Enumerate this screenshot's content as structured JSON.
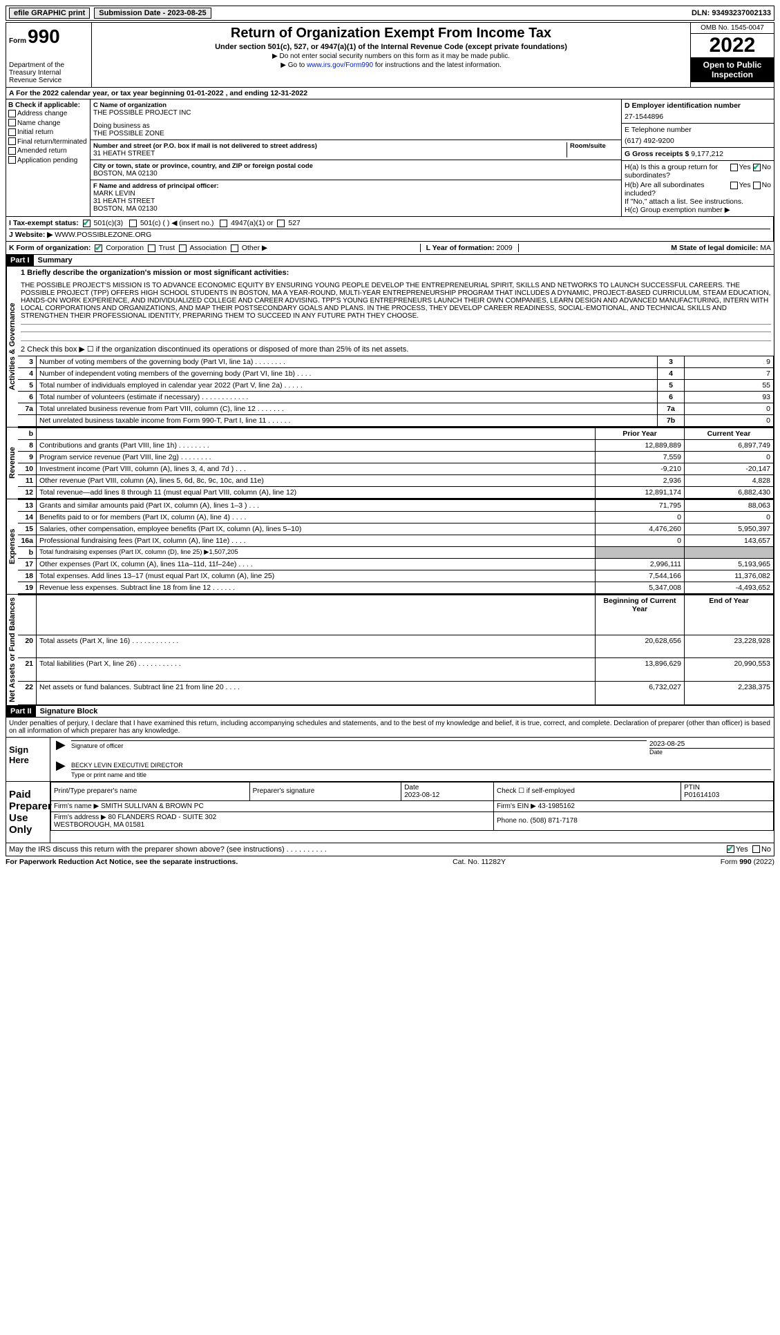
{
  "top": {
    "efile": "efile GRAPHIC print",
    "sub_date_label": "Submission Date - ",
    "sub_date": "2023-08-25",
    "dln_label": "DLN: ",
    "dln": "93493237002133"
  },
  "header": {
    "form_word": "Form",
    "form_no": "990",
    "dept": "Department of the Treasury Internal Revenue Service",
    "title": "Return of Organization Exempt From Income Tax",
    "subtitle": "Under section 501(c), 527, or 4947(a)(1) of the Internal Revenue Code (except private foundations)",
    "arrow1": "▶ Do not enter social security numbers on this form as it may be made public.",
    "arrow2_pre": "▶ Go to ",
    "arrow2_link": "www.irs.gov/Form990",
    "arrow2_post": " for instructions and the latest information.",
    "omb": "OMB No. 1545-0047",
    "year": "2022",
    "inspection": "Open to Public Inspection"
  },
  "rowA": "A For the 2022 calendar year, or tax year beginning 01-01-2022   , and ending 12-31-2022",
  "colB": {
    "hdr": "B Check if applicable:",
    "items": [
      "Address change",
      "Name change",
      "Initial return",
      "Final return/terminated",
      "Amended return",
      "Application pending"
    ]
  },
  "colC": {
    "name_label": "C Name of organization",
    "name": "THE POSSIBLE PROJECT INC",
    "dba_label": "Doing business as",
    "dba": "THE POSSIBLE ZONE",
    "street_label": "Number and street (or P.O. box if mail is not delivered to street address)",
    "room_label": "Room/suite",
    "street": "31 HEATH STREET",
    "city_label": "City or town, state or province, country, and ZIP or foreign postal code",
    "city": "BOSTON, MA  02130",
    "officer_label": "F  Name and address of principal officer:",
    "officer": "MARK LEVIN\n31 HEATH STREET\nBOSTON, MA  02130"
  },
  "colD": {
    "ein_label": "D Employer identification number",
    "ein": "27-1544896",
    "tel_label": "E Telephone number",
    "tel": "(617) 492-9200",
    "gross_label": "G Gross receipts $ ",
    "gross": "9,177,212",
    "ha": "H(a)  Is this a group return for subordinates?",
    "hb": "H(b)  Are all subordinates included?",
    "hb_note": "If \"No,\" attach a list. See instructions.",
    "hc": "H(c)  Group exemption number ▶",
    "yes": "Yes",
    "no": "No"
  },
  "rowI": {
    "label": "I  Tax-exempt status:",
    "o1": "501(c)(3)",
    "o2": "501(c) (   ) ◀ (insert no.)",
    "o3": "4947(a)(1) or",
    "o4": "527"
  },
  "rowJ": {
    "label": "J  Website: ▶  ",
    "val": "WWW.POSSIBLEZONE.ORG"
  },
  "rowK": {
    "label": "K Form of organization:",
    "o1": "Corporation",
    "o2": "Trust",
    "o3": "Association",
    "o4": "Other ▶",
    "l_label": "L Year of formation: ",
    "l_val": "2009",
    "m_label": "M State of legal domicile: ",
    "m_val": "MA"
  },
  "part1": {
    "tag": "Part I",
    "title": "Summary"
  },
  "mission_label": "1   Briefly describe the organization's mission or most significant activities:",
  "mission": "THE POSSIBLE PROJECT'S MISSION IS TO ADVANCE ECONOMIC EQUITY BY ENSURING YOUNG PEOPLE DEVELOP THE ENTREPRENEURIAL SPIRIT, SKILLS AND NETWORKS TO LAUNCH SUCCESSFUL CAREERS. THE POSSIBLE PROJECT (TPP) OFFERS HIGH SCHOOL STUDENTS IN BOSTON, MA A YEAR-ROUND, MULTI-YEAR ENTREPRENEURSHIP PROGRAM THAT INCLUDES A DYNAMIC, PROJECT-BASED CURRICULUM, STEAM EDUCATION, HANDS-ON WORK EXPERIENCE, AND INDIVIDUALIZED COLLEGE AND CAREER ADVISING. TPP'S YOUNG ENTREPRENEURS LAUNCH THEIR OWN COMPANIES, LEARN DESIGN AND ADVANCED MANUFACTURING, INTERN WITH LOCAL CORPORATIONS AND ORGANIZATIONS, AND MAP THEIR POSTSECONDARY GOALS AND PLANS. IN THE PROCESS, THEY DEVELOP CAREER READINESS, SOCIAL-EMOTIONAL, AND TECHNICAL SKILLS AND STRENGTHEN THEIR PROFESSIONAL IDENTITY, PREPARING THEM TO SUCCEED IN ANY FUTURE PATH THEY CHOOSE.",
  "line2": "2   Check this box ▶ ☐ if the organization discontinued its operations or disposed of more than 25% of its net assets.",
  "vlabels": {
    "ag": "Activities & Governance",
    "rev": "Revenue",
    "exp": "Expenses",
    "na": "Net Assets or Fund Balances"
  },
  "small_lines": [
    {
      "n": "3",
      "d": "Number of voting members of the governing body (Part VI, line 1a)   .    .    .    .    .    .    .    .",
      "box": "3",
      "v": "9"
    },
    {
      "n": "4",
      "d": "Number of independent voting members of the governing body (Part VI, line 1b)    .    .    .    .",
      "box": "4",
      "v": "7"
    },
    {
      "n": "5",
      "d": "Total number of individuals employed in calendar year 2022 (Part V, line 2a)   .    .    .    .    .",
      "box": "5",
      "v": "55"
    },
    {
      "n": "6",
      "d": "Total number of volunteers (estimate if necessary)    .    .    .    .    .    .    .    .    .    .    .    .",
      "box": "6",
      "v": "93"
    },
    {
      "n": "7a",
      "d": "Total unrelated business revenue from Part VIII, column (C), line 12   .    .    .    .    .    .    .",
      "box": "7a",
      "v": "0"
    },
    {
      "n": "",
      "d": "Net unrelated business taxable income from Form 990-T, Part I, line 11   .    .    .    .    .    .",
      "box": "7b",
      "v": "0"
    }
  ],
  "py_hdr": "Prior Year",
  "cy_hdr": "Current Year",
  "rev_lines": [
    {
      "n": "8",
      "d": "Contributions and grants (Part VIII, line 1h)   .    .    .    .    .    .    .    .",
      "py": "12,889,889",
      "cy": "6,897,749"
    },
    {
      "n": "9",
      "d": "Program service revenue (Part VIII, line 2g)    .    .    .    .    .    .    .    .",
      "py": "7,559",
      "cy": "0"
    },
    {
      "n": "10",
      "d": "Investment income (Part VIII, column (A), lines 3, 4, and 7d )    .    .    .",
      "py": "-9,210",
      "cy": "-20,147"
    },
    {
      "n": "11",
      "d": "Other revenue (Part VIII, column (A), lines 5, 6d, 8c, 9c, 10c, and 11e)",
      "py": "2,936",
      "cy": "4,828"
    },
    {
      "n": "12",
      "d": "Total revenue—add lines 8 through 11 (must equal Part VIII, column (A), line 12)",
      "py": "12,891,174",
      "cy": "6,882,430"
    }
  ],
  "exp_lines": [
    {
      "n": "13",
      "d": "Grants and similar amounts paid (Part IX, column (A), lines 1–3 )   .    .    .",
      "py": "71,795",
      "cy": "88,063"
    },
    {
      "n": "14",
      "d": "Benefits paid to or for members (Part IX, column (A), line 4)    .    .    .    .",
      "py": "0",
      "cy": "0"
    },
    {
      "n": "15",
      "d": "Salaries, other compensation, employee benefits (Part IX, column (A), lines 5–10)",
      "py": "4,476,260",
      "cy": "5,950,397"
    },
    {
      "n": "16a",
      "d": "Professional fundraising fees (Part IX, column (A), line 11e)   .    .    .    .",
      "py": "0",
      "cy": "143,657"
    }
  ],
  "line16b": {
    "n": "b",
    "d": "Total fundraising expenses (Part IX, column (D), line 25) ▶",
    "v": "1,507,205"
  },
  "exp_lines2": [
    {
      "n": "17",
      "d": "Other expenses (Part IX, column (A), lines 11a–11d, 11f–24e)    .    .    .    .",
      "py": "2,996,111",
      "cy": "5,193,965"
    },
    {
      "n": "18",
      "d": "Total expenses. Add lines 13–17 (must equal Part IX, column (A), line 25)",
      "py": "7,544,166",
      "cy": "11,376,082"
    },
    {
      "n": "19",
      "d": "Revenue less expenses. Subtract line 18 from line 12   .    .    .    .    .    .",
      "py": "5,347,008",
      "cy": "-4,493,652"
    }
  ],
  "by_hdr": "Beginning of Current Year",
  "ey_hdr": "End of Year",
  "na_lines": [
    {
      "n": "20",
      "d": "Total assets (Part X, line 16)    .    .    .    .    .    .    .    .    .    .    .    .",
      "py": "20,628,656",
      "cy": "23,228,928"
    },
    {
      "n": "21",
      "d": "Total liabilities (Part X, line 26)    .    .    .    .    .    .    .    .    .    .    .",
      "py": "13,896,629",
      "cy": "20,990,553"
    },
    {
      "n": "22",
      "d": "Net assets or fund balances. Subtract line 21 from line 20   .    .    .    .",
      "py": "6,732,027",
      "cy": "2,238,375"
    }
  ],
  "part2": {
    "tag": "Part II",
    "title": "Signature Block"
  },
  "perjury": "Under penalties of perjury, I declare that I have examined this return, including accompanying schedules and statements, and to the best of my knowledge and belief, it is true, correct, and complete. Declaration of preparer (other than officer) is based on all information of which preparer has any knowledge.",
  "sign": {
    "here": "Sign Here",
    "sig_officer": "Signature of officer",
    "date": "2023-08-25",
    "date_lbl": "Date",
    "name": "BECKY LEVIN  EXECUTIVE DIRECTOR",
    "name_lbl": "Type or print name and title"
  },
  "prep": {
    "label": "Paid Preparer Use Only",
    "h1": "Print/Type preparer's name",
    "h2": "Preparer's signature",
    "h3": "Date",
    "h3v": "2023-08-12",
    "h4": "Check ☐ if self-employed",
    "h5": "PTIN",
    "h5v": "P01614103",
    "firm_lbl": "Firm's name      ▶ ",
    "firm": "SMITH SULLIVAN & BROWN PC",
    "ein_lbl": "Firm's EIN ▶ ",
    "ein": "43-1985162",
    "addr_lbl": "Firm's address ▶ ",
    "addr": "80 FLANDERS ROAD - SUITE 302\nWESTBOROUGH, MA  01581",
    "phone_lbl": "Phone no. ",
    "phone": "(508) 871-7178"
  },
  "discuss": "May the IRS discuss this return with the preparer shown above? (see instructions)    .    .    .    .    .    .    .    .    .    .",
  "footer": {
    "l": "For Paperwork Reduction Act Notice, see the separate instructions.",
    "m": "Cat. No. 11282Y",
    "r": "Form 990 (2022)"
  }
}
